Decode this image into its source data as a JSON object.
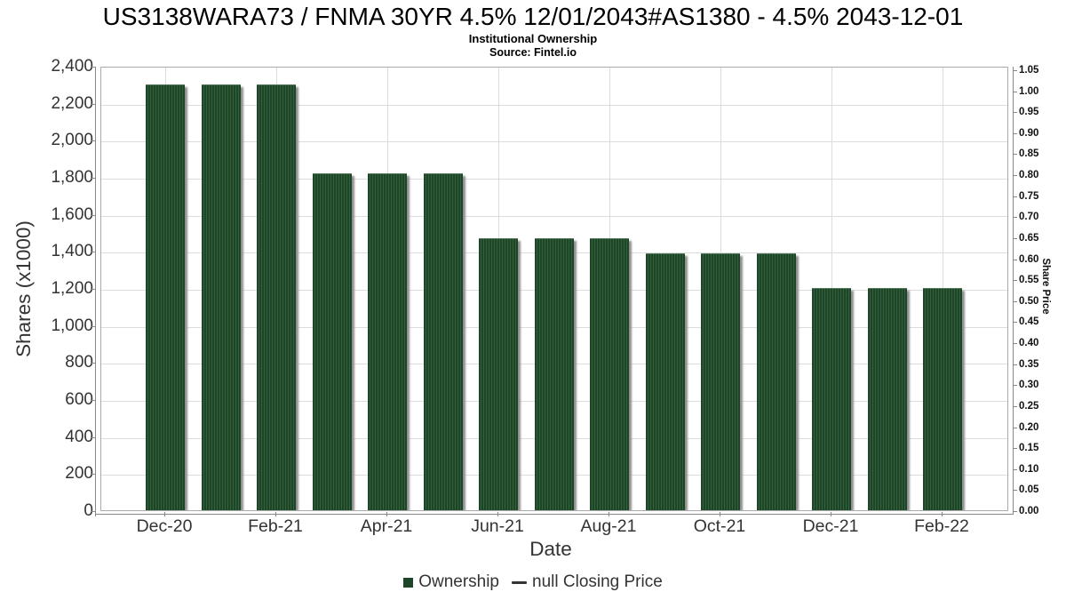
{
  "header": {
    "title": "US3138WARA73 / FNMA 30YR 4.5% 12/01/2043#AS1380 - 4.5% 2043-12-01",
    "subtitle": "Institutional Ownership",
    "source": "Source: Fintel.io"
  },
  "chart_data": {
    "type": "bar",
    "title": "US3138WARA73 / FNMA 30YR 4.5% 12/01/2043#AS1380 - 4.5% 2043-12-01",
    "subtitle": "Institutional Ownership",
    "source": "Source: Fintel.io",
    "categories": [
      "Dec-20",
      "Jan-21",
      "Feb-21",
      "Mar-21",
      "Apr-21",
      "May-21",
      "Jun-21",
      "Jul-21",
      "Aug-21",
      "Sep-21",
      "Oct-21",
      "Nov-21",
      "Dec-21",
      "Jan-22",
      "Feb-22"
    ],
    "series": [
      {
        "name": "Ownership",
        "type": "bar",
        "units": "shares x1000",
        "values": [
          2300,
          2300,
          2300,
          1820,
          1820,
          1820,
          1470,
          1470,
          1470,
          1385,
          1385,
          1385,
          1200,
          1200,
          1200
        ]
      },
      {
        "name": "null Closing Price",
        "type": "line",
        "values": []
      }
    ],
    "xlabel": "Date",
    "x_axis": {
      "title": "Date",
      "ticks": [
        "Dec-20",
        "Feb-21",
        "Apr-21",
        "Jun-21",
        "Aug-21",
        "Oct-21",
        "Dec-21",
        "Feb-22"
      ]
    },
    "left_axis": {
      "title": "Shares (x1000)",
      "range": [
        0,
        2400
      ],
      "ticks": [
        "2,400",
        "2,200",
        "2,000",
        "1,800",
        "1,600",
        "1,400",
        "1,200",
        "1,000",
        "800",
        "600",
        "400",
        "200",
        "0"
      ]
    },
    "right_axis": {
      "title": "Share Price",
      "range": [
        0,
        1.05
      ],
      "ticks": [
        "1.05",
        "1.00",
        "0.95",
        "0.90",
        "0.85",
        "0.80",
        "0.75",
        "0.70",
        "0.65",
        "0.60",
        "0.55",
        "0.50",
        "0.45",
        "0.40",
        "0.35",
        "0.30",
        "0.25",
        "0.20",
        "0.15",
        "0.10",
        "0.05",
        "0.00"
      ]
    },
    "grid": true,
    "legend_position": "bottom"
  },
  "legend": {
    "ownership_label": "Ownership",
    "closing_price_label": "null Closing Price"
  },
  "colors": {
    "bar_fill": "#1d4527",
    "bar_stripe": "#33603a",
    "bar_highlight": "#52775a",
    "bar_shadow": "#8f8f8f",
    "legend_line": "#333333",
    "grid": "#dcdcdc",
    "plot_border": "#aaaaaa",
    "axis_line": "#888888",
    "text": "#333333"
  }
}
